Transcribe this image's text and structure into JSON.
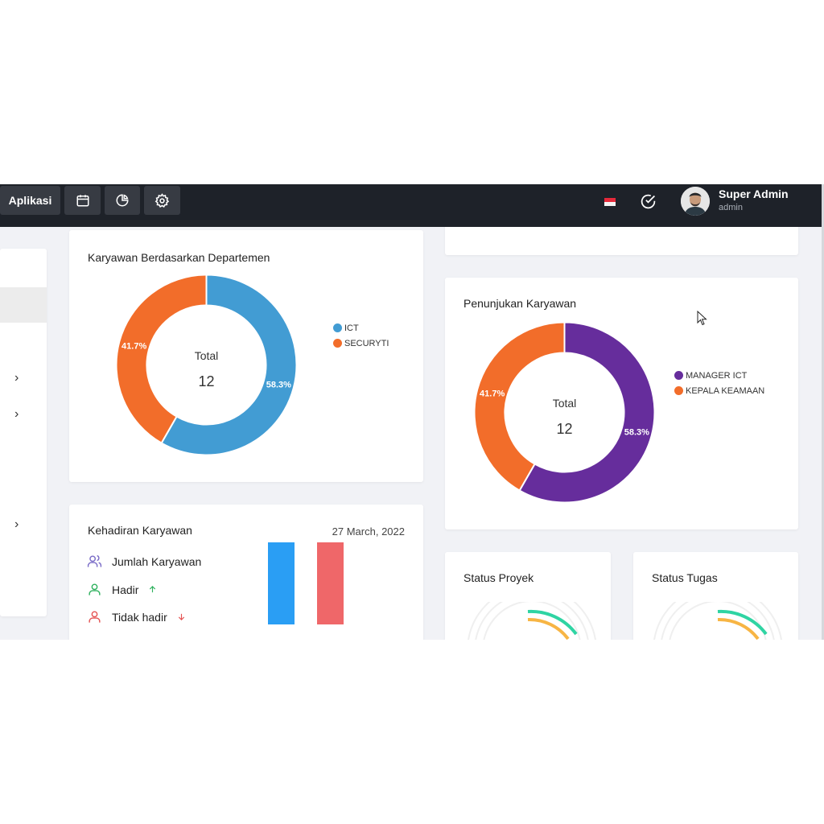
{
  "topbar": {
    "apps_label": "Aplikasi",
    "user_name": "Super Admin",
    "user_role": "admin",
    "icons": [
      "calendar-icon",
      "pie-chart-icon",
      "gear-icon",
      "flag-icon",
      "check-circle-icon",
      "avatar"
    ]
  },
  "dept_card": {
    "title": "Karyawan Berdasarkan Departemen",
    "center_label": "Total",
    "center_value": "12",
    "chart_data": {
      "type": "pie",
      "categories": [
        "ICT",
        "SECURYTI"
      ],
      "values": [
        58.3,
        41.7
      ],
      "labels": [
        "58.3%",
        "41.7%"
      ],
      "colors": [
        "#429cd3",
        "#f26d2a"
      ]
    }
  },
  "position_card": {
    "title": "Penunjukan Karyawan",
    "center_label": "Total",
    "center_value": "12",
    "chart_data": {
      "type": "pie",
      "categories": [
        "MANAGER ICT",
        "KEPALA KEAMAAN"
      ],
      "values": [
        58.3,
        41.7
      ],
      "labels": [
        "58.3%",
        "41.7%"
      ],
      "colors": [
        "#662d9c",
        "#f26d2a"
      ]
    }
  },
  "attendance_card": {
    "title": "Kehadiran Karyawan",
    "date": "27 March, 2022",
    "rows": [
      {
        "label": "Jumlah Karyawan"
      },
      {
        "label": "Hadir"
      },
      {
        "label": "Tidak hadir"
      }
    ],
    "bar_colors": [
      "#2a9ef4",
      "#ef6769"
    ]
  },
  "project_card": {
    "title": "Status Proyek"
  },
  "task_card": {
    "title": "Status Tugas"
  },
  "colors": {
    "topbar": "#1e2229",
    "background": "#f1f2f6",
    "accent_green": "#2fd4a3",
    "accent_orange": "#f7b544"
  }
}
